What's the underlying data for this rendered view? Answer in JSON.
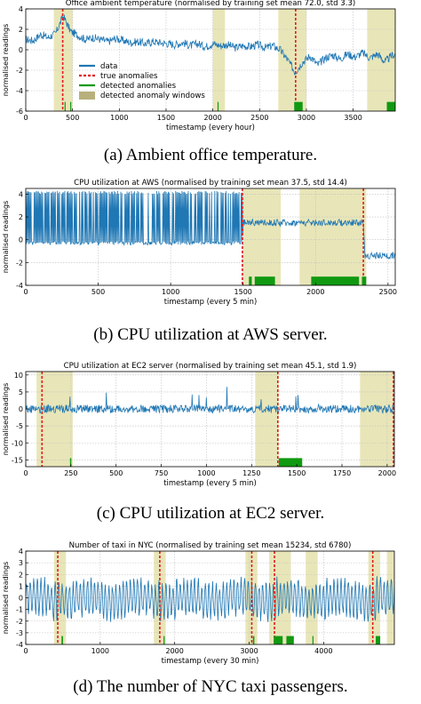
{
  "figure": {
    "captions": [
      "(a) Ambient office temperature.",
      "(b) CPU utilization at AWS server.",
      "(c) CPU utilization at EC2 server.",
      "(d) The number of NYC taxi passengers."
    ]
  },
  "colors": {
    "data": "#1f77b4",
    "true_anomaly": "#e41a1c",
    "detected_anomaly": "#119911",
    "window": "#e8e6b8",
    "grid": "#bdbdbd"
  },
  "chart_data": [
    {
      "type": "line",
      "title": "Office ambient temperature (normalised by training set mean 72.0, std 3.3)",
      "xlabel": "timestamp (every hour)",
      "ylabel": "normalised readings",
      "xlim": [
        0,
        3950
      ],
      "ylim": [
        -6,
        4
      ],
      "xticks": [
        0,
        500,
        1000,
        1500,
        2000,
        2500,
        3000,
        3500
      ],
      "yticks": [
        -6,
        -4,
        -2,
        0,
        2,
        4
      ],
      "grid": true,
      "legend": {
        "placement": "center-left",
        "entries": [
          "data",
          "true anomalies",
          "detected anomalies",
          "detected anomaly windows"
        ]
      },
      "windows": [
        [
          300,
          500
        ],
        [
          2000,
          2130
        ],
        [
          2700,
          3000
        ],
        [
          3650,
          3950
        ]
      ],
      "true_anomalies": [
        395,
        2885
      ],
      "detected_anomalies": [
        [
          415,
          420
        ],
        [
          475,
          480
        ],
        [
          2050,
          2055
        ],
        [
          2870,
          2960
        ],
        [
          3860,
          3950
        ]
      ],
      "series": [
        {
          "x": [
            0,
            80,
            160,
            240,
            320,
            400,
            480,
            560,
            640,
            720,
            800,
            880,
            960,
            1040,
            1120,
            1200,
            1280,
            1360,
            1440,
            1520,
            1600,
            1680,
            1760,
            1840,
            1920,
            2000,
            2080,
            2160,
            2240,
            2320,
            2400,
            2480,
            2560,
            2640,
            2720,
            2800,
            2880,
            2960,
            3040,
            3120,
            3200,
            3280,
            3360,
            3440,
            3520,
            3600,
            3680,
            3760,
            3840,
            3920
          ],
          "values": [
            1.0,
            0.9,
            1.5,
            1.2,
            1.6,
            3.3,
            1.8,
            1.4,
            1.0,
            1.2,
            1.0,
            0.8,
            1.1,
            0.9,
            0.7,
            0.8,
            0.6,
            0.8,
            0.7,
            0.6,
            0.5,
            0.7,
            0.4,
            0.6,
            0.3,
            0.6,
            0.4,
            0.5,
            0.2,
            0.4,
            0.3,
            0.5,
            0.2,
            0.4,
            0.0,
            -1.0,
            -2.2,
            -1.2,
            -0.6,
            -1.5,
            -0.8,
            -0.5,
            -0.9,
            -0.4,
            -0.7,
            -0.3,
            -0.8,
            -0.4,
            -1.2,
            -0.5
          ],
          "amplitude": 0.4
        }
      ]
    },
    {
      "type": "line",
      "title": "CPU utilization at AWS (normalised by training set mean 37.5, std 14.4)",
      "xlabel": "timestamp (every 5 min)",
      "ylabel": "normalised readings",
      "xlim": [
        0,
        2550
      ],
      "ylim": [
        -4,
        4.5
      ],
      "xticks": [
        0,
        500,
        1000,
        1500,
        2000,
        2500
      ],
      "yticks": [
        -4,
        -2,
        0,
        2,
        4
      ],
      "grid": true,
      "windows": [
        [
          1500,
          1760
        ],
        [
          1890,
          2350
        ]
      ],
      "true_anomalies": [
        1495,
        2330
      ],
      "detected_anomalies": [
        [
          1540,
          1560
        ],
        [
          1580,
          1720
        ],
        [
          1970,
          2300
        ],
        [
          2320,
          2350
        ]
      ],
      "series": [
        {
          "x": [
            0,
            1495,
            1500,
            2330,
            2340,
            2550
          ],
          "values": [
            -0.3,
            -0.3,
            1.5,
            1.5,
            -1.4,
            -1.4
          ],
          "amplitude": 0.3,
          "spikes": "first segment has frequent spikes to 4.3"
        }
      ]
    },
    {
      "type": "line",
      "title": "CPU utilization at EC2 server (normalised by training set mean 45.1, std 1.9)",
      "xlabel": "timestamp (every 5 min)",
      "ylabel": "normalised readings",
      "xlim": [
        0,
        2040
      ],
      "ylim": [
        -17,
        11
      ],
      "xticks": [
        0,
        250,
        500,
        750,
        1000,
        1250,
        1500,
        1750,
        2000
      ],
      "yticks": [
        -15,
        -10,
        -5,
        0,
        5,
        10
      ],
      "grid": true,
      "windows": [
        [
          60,
          260
        ],
        [
          1270,
          1400
        ],
        [
          1850,
          2040
        ]
      ],
      "true_anomalies": [
        90,
        1395,
        2035
      ],
      "detected_anomalies": [
        [
          245,
          252
        ],
        [
          1400,
          1530
        ]
      ],
      "series": [
        {
          "x": [
            0,
            2040
          ],
          "values": [
            0.0,
            0.0
          ],
          "amplitude": 2.0
        }
      ]
    },
    {
      "type": "line",
      "title": "Number of taxi in NYC (normalised by training set mean 15234, std 6780)",
      "xlabel": "timestamp (every 30 min)",
      "ylabel": "normalised readings",
      "xlim": [
        0,
        4950
      ],
      "ylim": [
        -4,
        4
      ],
      "xticks": [
        0,
        1000,
        2000,
        3000,
        4000
      ],
      "yticks": [
        -4,
        -3,
        -2,
        -1,
        0,
        1,
        2,
        3,
        4
      ],
      "grid": true,
      "windows": [
        [
          380,
          540
        ],
        [
          1720,
          1880
        ],
        [
          2950,
          3110
        ],
        [
          3270,
          3430
        ],
        [
          3400,
          3560
        ],
        [
          3760,
          3920
        ],
        [
          4600,
          4760
        ],
        [
          4850,
          4950
        ]
      ],
      "true_anomalies": [
        430,
        1800,
        3035,
        3340,
        4660
      ],
      "detected_anomalies": [
        [
          480,
          500
        ],
        [
          1850,
          1865
        ],
        [
          3050,
          3070
        ],
        [
          3330,
          3450
        ],
        [
          3500,
          3600
        ],
        [
          3850,
          3860
        ],
        [
          4700,
          4760
        ]
      ],
      "series": [
        {
          "x": [
            0,
            4950
          ],
          "values": [
            0.0,
            0.0
          ],
          "amplitude": 1.6
        }
      ]
    }
  ]
}
